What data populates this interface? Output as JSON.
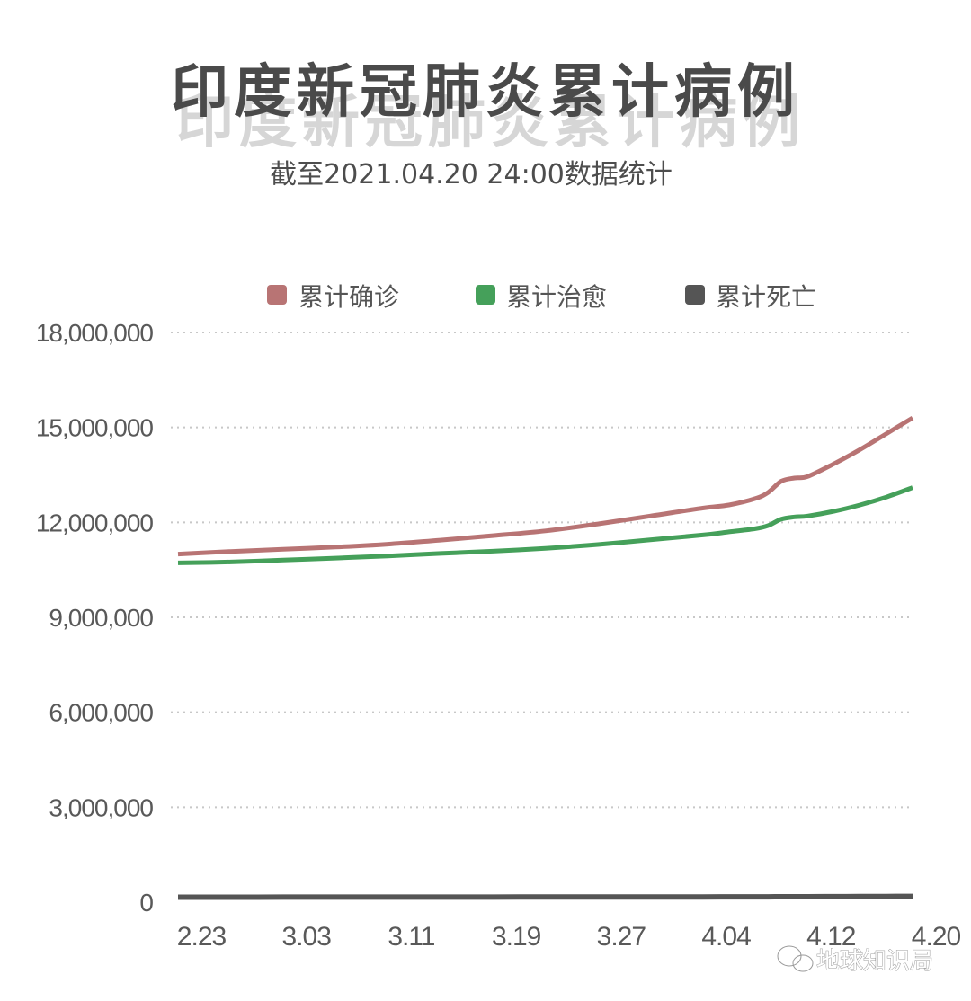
{
  "colors": {
    "confirmed": "#b87474",
    "recovered": "#45a05a",
    "deaths": "#555555",
    "title": "#4a4a4a"
  },
  "watermark": {
    "icon": "wechat-icon",
    "text": "地球知识局"
  },
  "chart_data": {
    "type": "line",
    "title": "印度新冠肺炎累计病例",
    "subtitle": "截至2021.04.20 24:00数据统计",
    "xlabel": "",
    "ylabel": "",
    "ylim": [
      0,
      18000000
    ],
    "y_ticks": [
      0,
      3000000,
      6000000,
      9000000,
      12000000,
      15000000,
      18000000
    ],
    "y_tick_labels": [
      "0",
      "3,000,000",
      "6,000,000",
      "9,000,000",
      "12,000,000",
      "15,000,000",
      "18,000,000"
    ],
    "x_tick_labels": [
      "2.23",
      "3.03",
      "3.11",
      "3.19",
      "3.27",
      "4.04",
      "4.12",
      "4.20"
    ],
    "x_tick_days": [
      0,
      8,
      16,
      24,
      32,
      40,
      48,
      56
    ],
    "grid": true,
    "legend_position": "top",
    "x": [
      0,
      4,
      8,
      12,
      16,
      20,
      24,
      28,
      32,
      36,
      40,
      42,
      44,
      45,
      46,
      47,
      48,
      50,
      52,
      54,
      56
    ],
    "series": [
      {
        "name": "累计确诊",
        "values": [
          11000000,
          11080000,
          11150000,
          11220000,
          11310000,
          11440000,
          11580000,
          11730000,
          11950000,
          12200000,
          12450000,
          12550000,
          12750000,
          12950000,
          13300000,
          13400000,
          13450000,
          13850000,
          14300000,
          14800000,
          15300000
        ]
      },
      {
        "name": "累计治愈",
        "values": [
          10720000,
          10750000,
          10810000,
          10870000,
          10940000,
          11020000,
          11090000,
          11180000,
          11300000,
          11450000,
          11600000,
          11700000,
          11800000,
          11900000,
          12100000,
          12170000,
          12200000,
          12350000,
          12550000,
          12800000,
          13100000
        ]
      },
      {
        "name": "累计死亡",
        "values": [
          157000,
          157400,
          158000,
          158700,
          159000,
          159600,
          160400,
          161300,
          162500,
          164100,
          165500,
          166400,
          167600,
          168400,
          169300,
          170200,
          171100,
          173100,
          175600,
          178800,
          182500
        ]
      }
    ]
  }
}
